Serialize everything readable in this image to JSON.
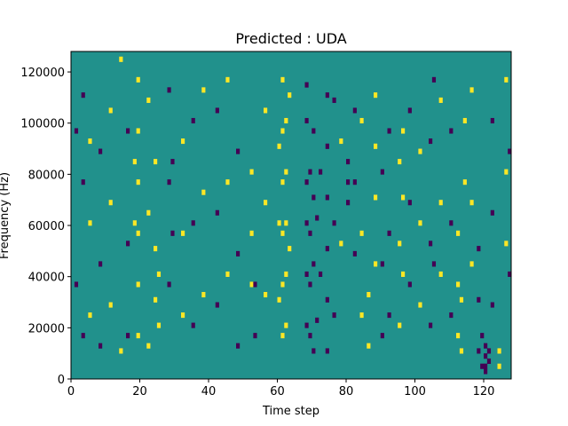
{
  "chart_data": {
    "type": "heatmap",
    "title": "Predicted : UDA",
    "xlabel": "Time step",
    "ylabel": "Frequency (Hz)",
    "xlim": [
      0,
      128
    ],
    "ylim": [
      0,
      128000
    ],
    "x_ticks": [
      0,
      20,
      40,
      60,
      80,
      100,
      120
    ],
    "y_ticks": [
      0,
      20000,
      40000,
      60000,
      80000,
      100000,
      120000
    ],
    "y_tick_labels": [
      "0",
      "20000",
      "40000",
      "60000",
      "80000",
      "100000",
      "120000"
    ],
    "n_time_steps": 128,
    "n_freq_bins": 64,
    "bin_hz": 2000,
    "colormap": {
      "0": "#440154",
      "1": "#21918c",
      "2": "#fde725"
    },
    "background_value": 1,
    "grid": false,
    "cells": [
      [
        61,
        2,
        58
      ],
      [
        61,
        2,
        48
      ],
      [
        61,
        2,
        38
      ],
      [
        61,
        2,
        28
      ],
      [
        61,
        2,
        18
      ],
      [
        61,
        2,
        8
      ],
      [
        62,
        2,
        50
      ],
      [
        62,
        2,
        40
      ],
      [
        62,
        2,
        30
      ],
      [
        62,
        2,
        20
      ],
      [
        62,
        2,
        10
      ],
      [
        60,
        2,
        45
      ],
      [
        60,
        2,
        30
      ],
      [
        60,
        2,
        15
      ],
      [
        63,
        2,
        55
      ],
      [
        63,
        2,
        25
      ],
      [
        68,
        0,
        10
      ],
      [
        68,
        0,
        20
      ],
      [
        68,
        0,
        30
      ],
      [
        68,
        0,
        38
      ],
      [
        68,
        0,
        50
      ],
      [
        68,
        0,
        57
      ],
      [
        69,
        0,
        8
      ],
      [
        69,
        0,
        18
      ],
      [
        69,
        0,
        28
      ],
      [
        69,
        0,
        40
      ],
      [
        70,
        0,
        5
      ],
      [
        70,
        0,
        22
      ],
      [
        70,
        0,
        35
      ],
      [
        70,
        0,
        48
      ],
      [
        74,
        0,
        5
      ],
      [
        74,
        0,
        15
      ],
      [
        74,
        0,
        25
      ],
      [
        74,
        0,
        35
      ],
      [
        74,
        0,
        45
      ],
      [
        74,
        0,
        55
      ],
      [
        71,
        0,
        11
      ],
      [
        71,
        0,
        31
      ],
      [
        72,
        0,
        20
      ],
      [
        72,
        0,
        40
      ],
      [
        19,
        2,
        58
      ],
      [
        19,
        2,
        48
      ],
      [
        19,
        2,
        38
      ],
      [
        19,
        2,
        28
      ],
      [
        19,
        2,
        18
      ],
      [
        19,
        2,
        8
      ],
      [
        18,
        2,
        42
      ],
      [
        18,
        2,
        30
      ],
      [
        24,
        2,
        42
      ],
      [
        24,
        2,
        25
      ],
      [
        24,
        2,
        15
      ],
      [
        25,
        2,
        20
      ],
      [
        25,
        2,
        10
      ],
      [
        28,
        0,
        18
      ],
      [
        28,
        0,
        38
      ],
      [
        28,
        0,
        56
      ],
      [
        29,
        0,
        42
      ],
      [
        29,
        0,
        28
      ],
      [
        14,
        2,
        5
      ],
      [
        14,
        2,
        62
      ],
      [
        3,
        0,
        8
      ],
      [
        3,
        0,
        38
      ],
      [
        3,
        0,
        55
      ],
      [
        52,
        2,
        18
      ],
      [
        52,
        2,
        28
      ],
      [
        52,
        2,
        40
      ],
      [
        53,
        0,
        8
      ],
      [
        53,
        0,
        18
      ],
      [
        88,
        2,
        22
      ],
      [
        88,
        2,
        35
      ],
      [
        88,
        2,
        45
      ],
      [
        88,
        2,
        55
      ],
      [
        96,
        2,
        20
      ],
      [
        96,
        2,
        35
      ],
      [
        96,
        2,
        48
      ],
      [
        105,
        0,
        22
      ],
      [
        105,
        0,
        58
      ],
      [
        112,
        2,
        8
      ],
      [
        112,
        2,
        18
      ],
      [
        112,
        2,
        28
      ],
      [
        113,
        2,
        5
      ],
      [
        113,
        2,
        15
      ],
      [
        114,
        2,
        38
      ],
      [
        114,
        2,
        50
      ],
      [
        118,
        0,
        5
      ],
      [
        118,
        0,
        15
      ],
      [
        118,
        0,
        25
      ],
      [
        119,
        0,
        2
      ],
      [
        119,
        0,
        8
      ],
      [
        120,
        0,
        1
      ],
      [
        120,
        0,
        2
      ],
      [
        120,
        0,
        4
      ],
      [
        120,
        0,
        6
      ],
      [
        121,
        0,
        3
      ],
      [
        121,
        0,
        5
      ],
      [
        124,
        2,
        2
      ],
      [
        124,
        2,
        5
      ],
      [
        80,
        0,
        34
      ],
      [
        80,
        0,
        38
      ],
      [
        80,
        0,
        42
      ],
      [
        82,
        0,
        24
      ],
      [
        82,
        0,
        38
      ],
      [
        82,
        0,
        52
      ],
      [
        84,
        2,
        12
      ],
      [
        84,
        2,
        28
      ],
      [
        84,
        2,
        50
      ],
      [
        86,
        2,
        6
      ],
      [
        86,
        2,
        16
      ],
      [
        90,
        0,
        8
      ],
      [
        90,
        0,
        22
      ],
      [
        90,
        0,
        40
      ],
      [
        92,
        0,
        12
      ],
      [
        92,
        0,
        28
      ],
      [
        92,
        0,
        48
      ],
      [
        95,
        2,
        10
      ],
      [
        95,
        2,
        26
      ],
      [
        95,
        2,
        42
      ],
      [
        98,
        0,
        18
      ],
      [
        98,
        0,
        34
      ],
      [
        98,
        0,
        52
      ],
      [
        101,
        2,
        14
      ],
      [
        101,
        2,
        30
      ],
      [
        101,
        2,
        44
      ],
      [
        104,
        0,
        10
      ],
      [
        104,
        0,
        26
      ],
      [
        104,
        0,
        46
      ],
      [
        107,
        2,
        20
      ],
      [
        107,
        2,
        34
      ],
      [
        107,
        2,
        54
      ],
      [
        110,
        0,
        12
      ],
      [
        110,
        0,
        30
      ],
      [
        110,
        0,
        48
      ],
      [
        116,
        2,
        22
      ],
      [
        116,
        2,
        34
      ],
      [
        116,
        2,
        56
      ],
      [
        122,
        0,
        14
      ],
      [
        122,
        0,
        32
      ],
      [
        122,
        0,
        50
      ],
      [
        126,
        2,
        26
      ],
      [
        126,
        2,
        40
      ],
      [
        126,
        2,
        58
      ],
      [
        5,
        2,
        12
      ],
      [
        5,
        2,
        30
      ],
      [
        5,
        2,
        46
      ],
      [
        8,
        0,
        6
      ],
      [
        8,
        0,
        22
      ],
      [
        8,
        0,
        44
      ],
      [
        11,
        2,
        14
      ],
      [
        11,
        2,
        34
      ],
      [
        11,
        2,
        52
      ],
      [
        16,
        0,
        8
      ],
      [
        16,
        0,
        26
      ],
      [
        16,
        0,
        48
      ],
      [
        22,
        2,
        6
      ],
      [
        22,
        2,
        32
      ],
      [
        22,
        2,
        54
      ],
      [
        32,
        2,
        12
      ],
      [
        32,
        2,
        28
      ],
      [
        32,
        2,
        46
      ],
      [
        35,
        0,
        10
      ],
      [
        35,
        0,
        30
      ],
      [
        35,
        0,
        50
      ],
      [
        38,
        2,
        16
      ],
      [
        38,
        2,
        36
      ],
      [
        38,
        2,
        56
      ],
      [
        42,
        0,
        14
      ],
      [
        42,
        0,
        32
      ],
      [
        42,
        0,
        52
      ],
      [
        45,
        2,
        20
      ],
      [
        45,
        2,
        38
      ],
      [
        45,
        2,
        58
      ],
      [
        48,
        0,
        6
      ],
      [
        48,
        0,
        24
      ],
      [
        48,
        0,
        44
      ],
      [
        56,
        2,
        16
      ],
      [
        56,
        2,
        34
      ],
      [
        56,
        2,
        52
      ],
      [
        76,
        0,
        12
      ],
      [
        76,
        0,
        30
      ],
      [
        76,
        0,
        54
      ],
      [
        78,
        2,
        26
      ],
      [
        78,
        2,
        46
      ],
      [
        1,
        0,
        18
      ],
      [
        1,
        0,
        48
      ],
      [
        127,
        0,
        20
      ],
      [
        127,
        0,
        44
      ]
    ]
  }
}
